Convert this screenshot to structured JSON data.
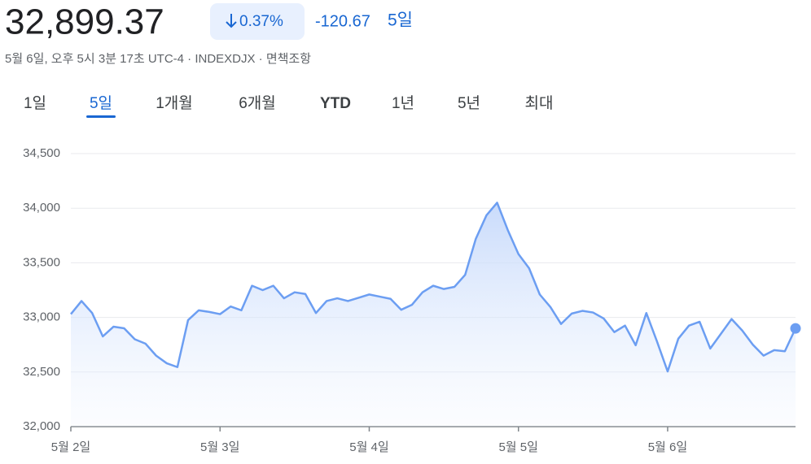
{
  "header": {
    "price": "32,899.37",
    "change_percent": "0.37%",
    "change": "-120.67",
    "period": "5일",
    "subtitle": "5월 6일, 오후 5시 3분 17초 UTC-4 · INDEXDJX · 면책조항"
  },
  "tabs": {
    "items": [
      "1일",
      "5일",
      "1개월",
      "6개월",
      "YTD",
      "1년",
      "5년",
      "최대"
    ],
    "active": "5일"
  },
  "chart_data": {
    "type": "area",
    "color": "#6c9ef2",
    "grid": true,
    "categories": [
      "5월 2일",
      null,
      null,
      null,
      null,
      null,
      null,
      null,
      null,
      null,
      null,
      null,
      null,
      null,
      "5월 3일",
      null,
      null,
      null,
      null,
      null,
      null,
      null,
      null,
      null,
      null,
      null,
      null,
      null,
      "5월 4일",
      null,
      null,
      null,
      null,
      null,
      null,
      null,
      null,
      null,
      null,
      null,
      null,
      null,
      "5월 5일",
      null,
      null,
      null,
      null,
      null,
      null,
      null,
      null,
      null,
      null,
      null,
      null,
      null,
      "5월 6일",
      null,
      null,
      null,
      null,
      null,
      null,
      null,
      null,
      null,
      null,
      null,
      null
    ],
    "values": [
      33030,
      33150,
      33040,
      32826,
      32915,
      32900,
      32800,
      32760,
      32650,
      32580,
      32545,
      32975,
      33065,
      33050,
      33030,
      33100,
      33065,
      33290,
      33250,
      33290,
      33175,
      33230,
      33215,
      33040,
      33150,
      33175,
      33150,
      33180,
      33210,
      33190,
      33170,
      33070,
      33115,
      33230,
      33290,
      33260,
      33280,
      33390,
      33720,
      33935,
      34050,
      33800,
      33580,
      33450,
      33210,
      33095,
      32940,
      33035,
      33060,
      33045,
      32990,
      32865,
      32925,
      32745,
      33040,
      32780,
      32505,
      32805,
      32925,
      32960,
      32715,
      32850,
      32985,
      32880,
      32750,
      32650,
      32700,
      32690,
      32899.37
    ],
    "ylim": [
      32000,
      34500
    ],
    "yticks": [
      {
        "value": 32000,
        "label": "32,000"
      },
      {
        "value": 32500,
        "label": "32,500"
      },
      {
        "value": 33000,
        "label": "33,000"
      },
      {
        "value": 33500,
        "label": "33,500"
      },
      {
        "value": 34000,
        "label": "34,000"
      },
      {
        "value": 34500,
        "label": "34,500"
      }
    ]
  }
}
